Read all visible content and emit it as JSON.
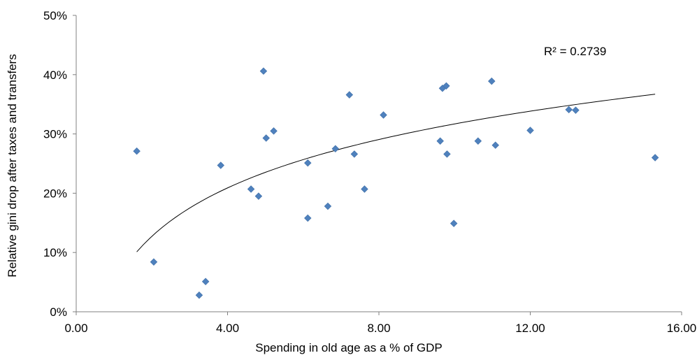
{
  "chart_data": {
    "type": "scatter",
    "title": "",
    "xlabel": "Spending in old age as a % of GDP",
    "ylabel": "Relative gini drop after taxes and transfers",
    "xlim": [
      0,
      16
    ],
    "ylim": [
      0,
      0.5
    ],
    "x_ticks": [
      0,
      4,
      8,
      12,
      16
    ],
    "x_tick_labels": [
      "0.00",
      "4.00",
      "8.00",
      "12.00",
      "16.00"
    ],
    "y_ticks": [
      0,
      0.1,
      0.2,
      0.3,
      0.4,
      0.5
    ],
    "y_tick_labels": [
      "0%",
      "10%",
      "20%",
      "30%",
      "40%",
      "50%"
    ],
    "grid": false,
    "legend": "none",
    "marker_color": "#4F81BD",
    "trendline": {
      "type": "logarithmic",
      "r_squared_label": "R² = 0.2739",
      "x_range": [
        1.6,
        15.3
      ],
      "endpoints_y": [
        0.101,
        0.367
      ],
      "color": "#000000"
    },
    "points": [
      {
        "x": 1.6,
        "y": 0.271
      },
      {
        "x": 2.05,
        "y": 0.084
      },
      {
        "x": 3.25,
        "y": 0.028
      },
      {
        "x": 3.42,
        "y": 0.051
      },
      {
        "x": 3.82,
        "y": 0.247
      },
      {
        "x": 4.62,
        "y": 0.207
      },
      {
        "x": 4.82,
        "y": 0.195
      },
      {
        "x": 4.95,
        "y": 0.406
      },
      {
        "x": 5.02,
        "y": 0.293
      },
      {
        "x": 5.22,
        "y": 0.305
      },
      {
        "x": 6.12,
        "y": 0.251
      },
      {
        "x": 6.12,
        "y": 0.158
      },
      {
        "x": 6.65,
        "y": 0.178
      },
      {
        "x": 6.85,
        "y": 0.275
      },
      {
        "x": 7.22,
        "y": 0.366
      },
      {
        "x": 7.35,
        "y": 0.266
      },
      {
        "x": 7.62,
        "y": 0.207
      },
      {
        "x": 8.12,
        "y": 0.332
      },
      {
        "x": 9.62,
        "y": 0.288
      },
      {
        "x": 9.68,
        "y": 0.377
      },
      {
        "x": 9.78,
        "y": 0.381
      },
      {
        "x": 9.8,
        "y": 0.266
      },
      {
        "x": 9.98,
        "y": 0.149
      },
      {
        "x": 10.62,
        "y": 0.288
      },
      {
        "x": 10.98,
        "y": 0.389
      },
      {
        "x": 11.08,
        "y": 0.281
      },
      {
        "x": 12.0,
        "y": 0.306
      },
      {
        "x": 13.02,
        "y": 0.341
      },
      {
        "x": 13.2,
        "y": 0.34
      },
      {
        "x": 15.3,
        "y": 0.26
      }
    ]
  }
}
